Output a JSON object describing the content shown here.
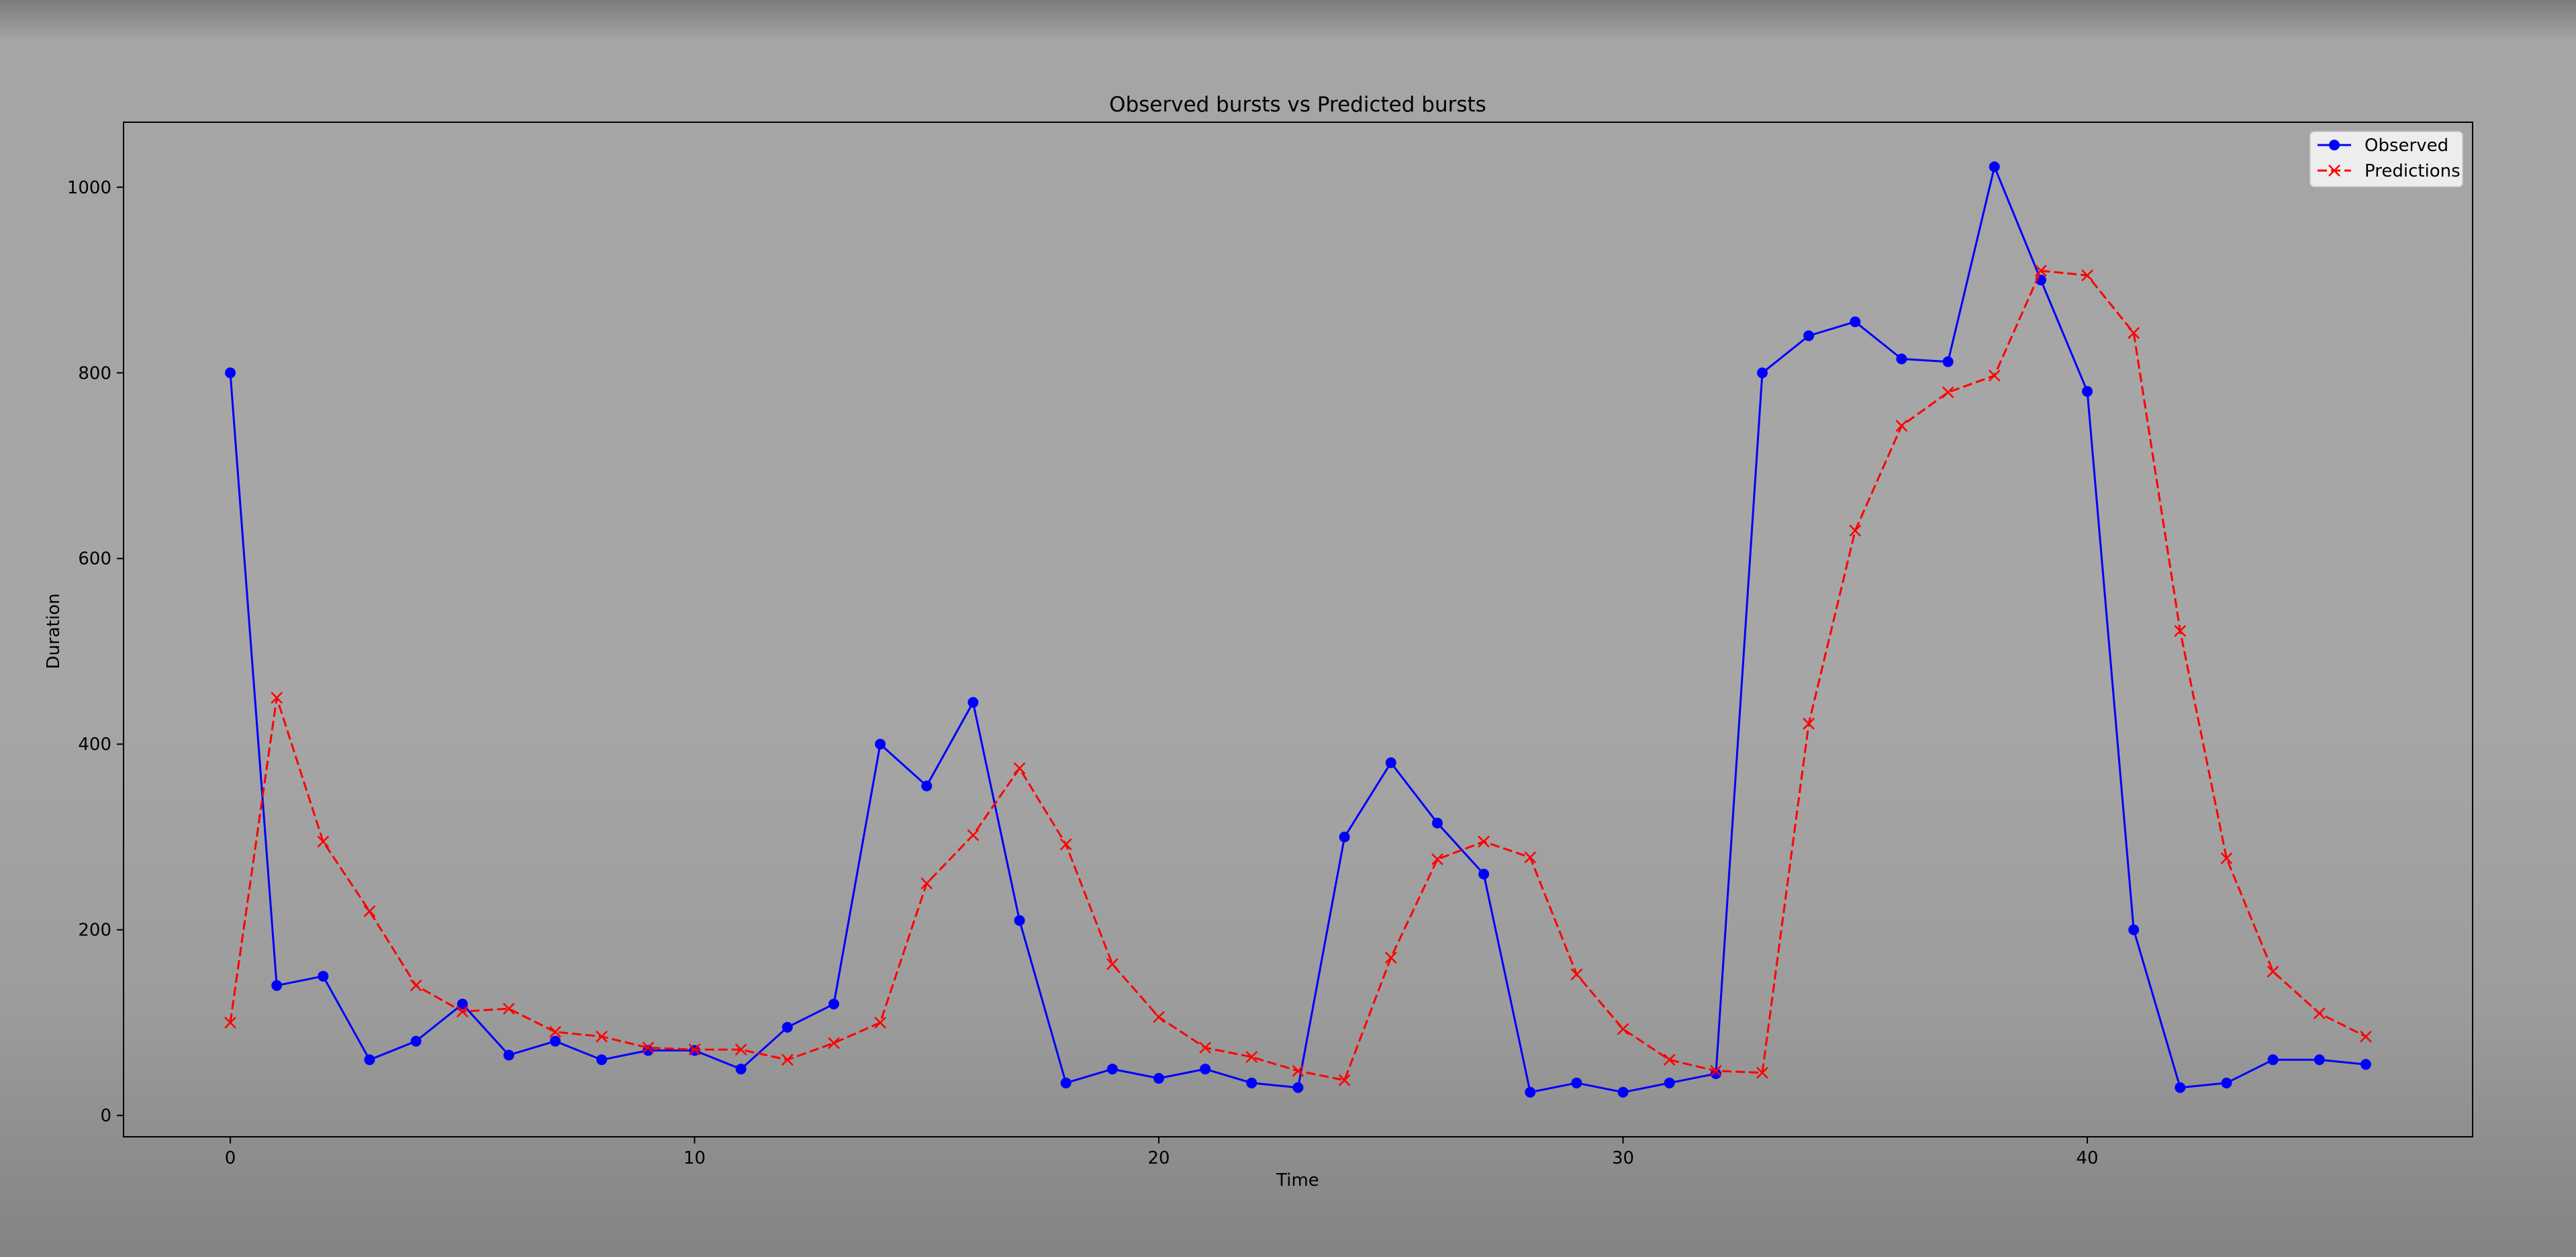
{
  "chart_data": {
    "type": "line",
    "title": "Observed bursts vs Predicted bursts",
    "xlabel": "Time",
    "ylabel": "Duration",
    "xlim": [
      -2.3,
      48.3
    ],
    "ylim": [
      -23,
      1070
    ],
    "xticks": [
      0,
      10,
      20,
      30,
      40
    ],
    "yticks": [
      0,
      200,
      400,
      600,
      800,
      1000
    ],
    "grid": false,
    "legend_position": "top-right",
    "x": [
      0,
      1,
      2,
      3,
      4,
      5,
      6,
      7,
      8,
      9,
      10,
      11,
      12,
      13,
      14,
      15,
      16,
      17,
      18,
      19,
      20,
      21,
      22,
      23,
      24,
      25,
      26,
      27,
      28,
      29,
      30,
      31,
      32,
      33,
      34,
      35,
      36,
      37,
      38,
      39,
      40,
      41,
      42,
      43,
      44,
      45,
      46
    ],
    "series": [
      {
        "name": "Observed",
        "color": "#0000ff",
        "style": "solid",
        "marker": "circle",
        "values": [
          800,
          140,
          150,
          60,
          80,
          120,
          65,
          80,
          60,
          70,
          70,
          50,
          95,
          120,
          400,
          355,
          445,
          210,
          35,
          50,
          40,
          50,
          35,
          30,
          300,
          380,
          315,
          260,
          25,
          35,
          25,
          35,
          45,
          800,
          840,
          855,
          815,
          812,
          1022,
          900,
          780,
          200,
          30,
          35,
          60,
          60,
          55
        ]
      },
      {
        "name": "Predictions",
        "color": "#ff0000",
        "style": "dashed",
        "marker": "x",
        "values": [
          100,
          450,
          295,
          220,
          140,
          112,
          115,
          90,
          85,
          73,
          71,
          71,
          60,
          78,
          100,
          250,
          302,
          374,
          292,
          163,
          106,
          73,
          63,
          48,
          38,
          170,
          276,
          295,
          278,
          152,
          93,
          60,
          48,
          46,
          422,
          630,
          743,
          779,
          797,
          910,
          905,
          843,
          522,
          277,
          155,
          110,
          85
        ]
      }
    ]
  }
}
